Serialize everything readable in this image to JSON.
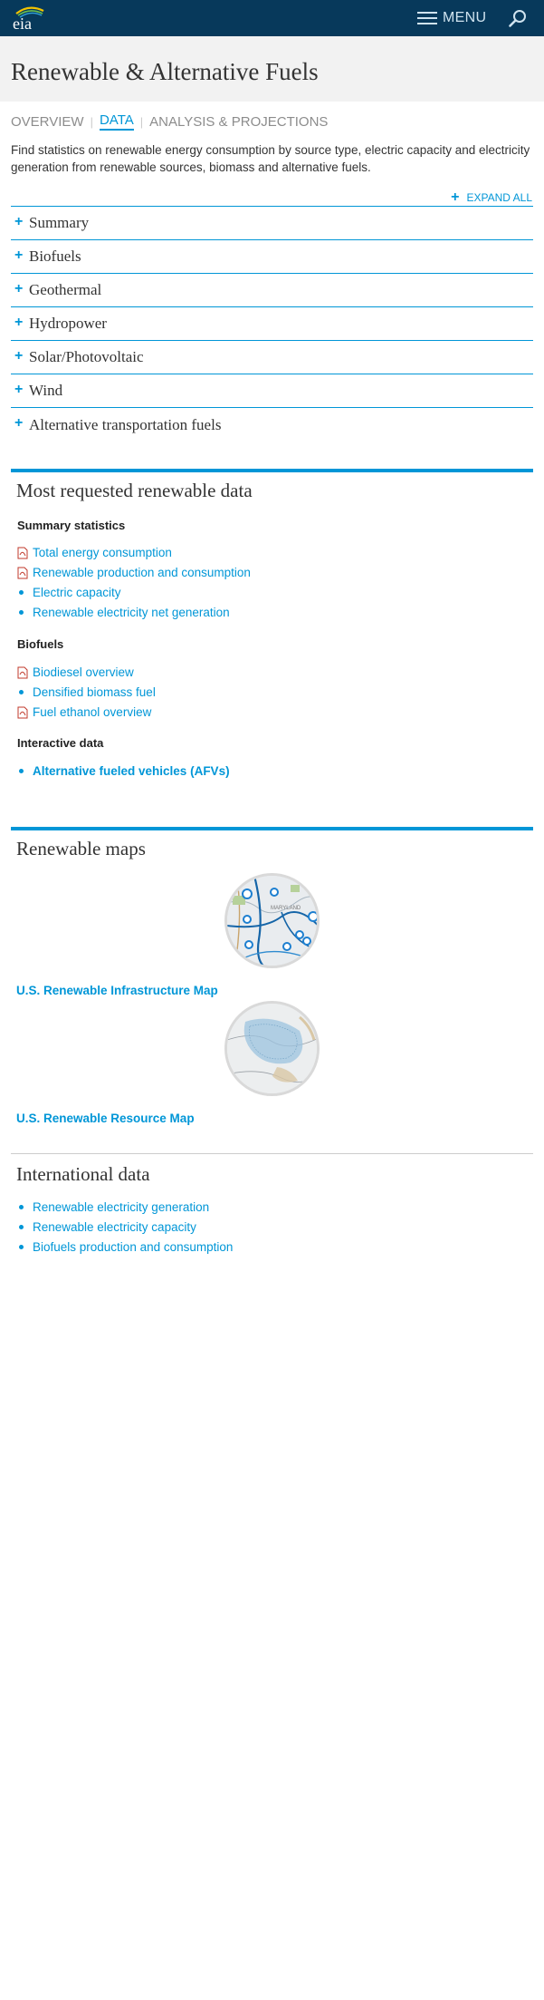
{
  "header": {
    "logo_text": "eia",
    "menu_label": "MENU",
    "logo_icon": "eia-logo",
    "search_icon": "search-icon",
    "colors": {
      "bar": "#07395b",
      "accent": "#0096d7"
    }
  },
  "page": {
    "title": "Renewable & Alternative Fuels",
    "tabs": [
      {
        "label": "OVERVIEW",
        "active": false
      },
      {
        "label": "DATA",
        "active": true
      },
      {
        "label": "ANALYSIS & PROJECTIONS",
        "active": false
      }
    ],
    "intro": "Find statistics on renewable energy consumption by source type, electric capacity and electricity generation from renewable sources, biomass and alternative fuels.",
    "expand_all": "EXPAND ALL"
  },
  "accordion": [
    "Summary",
    "Biofuels",
    "Geothermal",
    "Hydropower",
    "Solar/Photovoltaic",
    "Wind",
    "Alternative transportation fuels"
  ],
  "most_requested": {
    "title": "Most requested renewable data",
    "groups": [
      {
        "heading": "Summary statistics",
        "links": [
          {
            "label": "Total energy consumption",
            "icon": "pdf-icon"
          },
          {
            "label": "Renewable production and consumption",
            "icon": "pdf-icon"
          },
          {
            "label": "Electric capacity",
            "icon": "bullet"
          },
          {
            "label": "Renewable electricity net generation",
            "icon": "bullet"
          }
        ]
      },
      {
        "heading": "Biofuels",
        "links": [
          {
            "label": "Biodiesel overview",
            "icon": "pdf-icon"
          },
          {
            "label": "Densified biomass fuel",
            "icon": "bullet"
          },
          {
            "label": "Fuel ethanol overview",
            "icon": "pdf-icon"
          }
        ]
      },
      {
        "heading": "Interactive data",
        "links": [
          {
            "label": "Alternative fueled vehicles (AFVs)",
            "icon": "bullet"
          }
        ]
      }
    ]
  },
  "maps": {
    "title": "Renewable maps",
    "items": [
      {
        "label": "U.S. Renewable Infrastructure Map",
        "thumb_text": "MARYLAND"
      },
      {
        "label": "U.S. Renewable Resource Map"
      }
    ]
  },
  "international": {
    "title": "International data",
    "links": [
      "Renewable electricity generation",
      "Renewable electricity capacity",
      "Biofuels production and consumption"
    ]
  }
}
